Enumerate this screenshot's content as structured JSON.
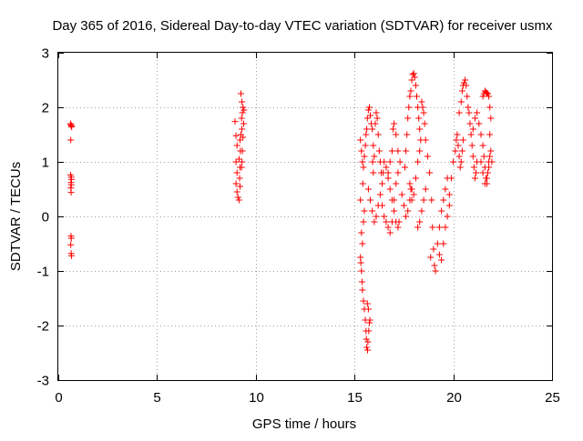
{
  "chart_data": {
    "type": "scatter",
    "title": "Day 365 of 2016, Sidereal Day-to-day VTEC variation (SDTVAR) for receiver usmx",
    "xlabel": "GPS time / hours",
    "ylabel": "SDTVAR / TECUs",
    "xlim": [
      0,
      25
    ],
    "ylim": [
      -3,
      3
    ],
    "xticks": [
      0,
      5,
      10,
      15,
      20,
      25
    ],
    "yticks": [
      -3,
      -2,
      -1,
      0,
      1,
      2,
      3
    ],
    "xtick_labels": [
      "0",
      "5",
      "10",
      "15",
      "20",
      "25"
    ],
    "ytick_labels": [
      "-3",
      "-2",
      "-1",
      "0",
      "1",
      "2",
      "3"
    ],
    "grid": true,
    "marker": "+",
    "color": "#ff0000",
    "series": [
      {
        "name": "SDTVAR",
        "points": [
          [
            0.62,
            1.7
          ],
          [
            0.64,
            1.68
          ],
          [
            0.66,
            1.66
          ],
          [
            0.68,
            1.64
          ],
          [
            0.63,
            1.4
          ],
          [
            0.62,
            0.76
          ],
          [
            0.65,
            0.72
          ],
          [
            0.67,
            0.68
          ],
          [
            0.64,
            0.62
          ],
          [
            0.66,
            0.58
          ],
          [
            0.63,
            0.52
          ],
          [
            0.65,
            0.44
          ],
          [
            0.64,
            -0.36
          ],
          [
            0.66,
            -0.4
          ],
          [
            0.63,
            -0.52
          ],
          [
            0.65,
            -0.68
          ],
          [
            0.67,
            -0.72
          ],
          [
            8.95,
            1.74
          ],
          [
            9.0,
            1.48
          ],
          [
            9.05,
            1.3
          ],
          [
            9.0,
            1.0
          ],
          [
            9.05,
            0.8
          ],
          [
            9.0,
            0.6
          ],
          [
            9.05,
            0.45
          ],
          [
            9.1,
            0.35
          ],
          [
            9.15,
            0.3
          ],
          [
            9.2,
            0.55
          ],
          [
            9.18,
            0.7
          ],
          [
            9.2,
            0.9
          ],
          [
            9.15,
            1.05
          ],
          [
            9.22,
            1.2
          ],
          [
            9.2,
            1.4
          ],
          [
            9.25,
            1.5
          ],
          [
            9.3,
            1.6
          ],
          [
            9.28,
            1.8
          ],
          [
            9.32,
            1.9
          ],
          [
            9.35,
            2.0
          ],
          [
            9.3,
            2.1
          ],
          [
            9.25,
            2.25
          ],
          [
            9.4,
            1.95
          ],
          [
            9.38,
            1.7
          ],
          [
            9.35,
            1.45
          ],
          [
            9.32,
            1.2
          ],
          [
            9.3,
            1.0
          ],
          [
            9.28,
            0.9
          ],
          [
            15.3,
            -0.75
          ],
          [
            15.32,
            -0.85
          ],
          [
            15.35,
            -1.0
          ],
          [
            15.38,
            -1.2
          ],
          [
            15.4,
            -1.35
          ],
          [
            15.45,
            -1.55
          ],
          [
            15.5,
            -1.7
          ],
          [
            15.55,
            -1.9
          ],
          [
            15.58,
            -2.1
          ],
          [
            15.6,
            -2.25
          ],
          [
            15.62,
            -2.4
          ],
          [
            15.66,
            -2.45
          ],
          [
            15.68,
            -2.3
          ],
          [
            15.72,
            -2.1
          ],
          [
            15.75,
            -1.95
          ],
          [
            15.78,
            -1.9
          ],
          [
            15.7,
            -1.7
          ],
          [
            15.65,
            -1.6
          ],
          [
            15.35,
            -0.3
          ],
          [
            15.4,
            -0.5
          ],
          [
            15.45,
            -0.1
          ],
          [
            15.5,
            0.1
          ],
          [
            15.3,
            0.3
          ],
          [
            15.42,
            0.6
          ],
          [
            15.3,
            1.4
          ],
          [
            15.35,
            1.2
          ],
          [
            15.4,
            1.0
          ],
          [
            15.45,
            0.9
          ],
          [
            15.5,
            1.1
          ],
          [
            15.55,
            1.3
          ],
          [
            15.58,
            1.5
          ],
          [
            15.62,
            1.6
          ],
          [
            15.65,
            1.8
          ],
          [
            15.7,
            1.95
          ],
          [
            15.75,
            2.0
          ],
          [
            15.8,
            1.85
          ],
          [
            15.85,
            1.7
          ],
          [
            15.9,
            1.6
          ],
          [
            15.95,
            1.3
          ],
          [
            16.0,
            1.1
          ],
          [
            15.92,
            1.0
          ],
          [
            15.95,
            0.8
          ],
          [
            16.05,
            1.7
          ],
          [
            16.1,
            1.9
          ],
          [
            16.15,
            1.8
          ],
          [
            16.2,
            1.5
          ],
          [
            16.25,
            1.2
          ],
          [
            16.3,
            1.0
          ],
          [
            16.35,
            0.8
          ],
          [
            16.4,
            0.6
          ],
          [
            16.45,
            0.8
          ],
          [
            16.5,
            1.0
          ],
          [
            16.6,
            0.9
          ],
          [
            16.7,
            0.7
          ],
          [
            16.8,
            0.5
          ],
          [
            16.9,
            0.3
          ],
          [
            17.0,
            0.1
          ],
          [
            17.1,
            -0.1
          ],
          [
            17.2,
            -0.2
          ],
          [
            17.25,
            -0.1
          ],
          [
            15.7,
            0.5
          ],
          [
            15.8,
            0.3
          ],
          [
            15.9,
            0.1
          ],
          [
            16.0,
            -0.1
          ],
          [
            16.1,
            0.0
          ],
          [
            16.2,
            0.2
          ],
          [
            16.3,
            0.4
          ],
          [
            16.4,
            0.2
          ],
          [
            16.5,
            0.0
          ],
          [
            16.6,
            -0.1
          ],
          [
            16.7,
            -0.2
          ],
          [
            16.8,
            -0.3
          ],
          [
            16.9,
            -0.1
          ],
          [
            17.0,
            0.3
          ],
          [
            17.1,
            0.6
          ],
          [
            17.2,
            0.8
          ],
          [
            17.3,
            1.0
          ],
          [
            17.2,
            1.2
          ],
          [
            17.1,
            1.5
          ],
          [
            17.0,
            1.7
          ],
          [
            16.95,
            1.6
          ],
          [
            16.9,
            1.2
          ],
          [
            16.8,
            1.0
          ],
          [
            16.7,
            0.8
          ],
          [
            17.4,
            0.4
          ],
          [
            17.5,
            0.2
          ],
          [
            17.6,
            0.0
          ],
          [
            17.7,
            0.1
          ],
          [
            17.8,
            0.3
          ],
          [
            17.9,
            0.5
          ],
          [
            17.55,
            0.9
          ],
          [
            17.6,
            1.2
          ],
          [
            17.65,
            1.5
          ],
          [
            17.7,
            1.8
          ],
          [
            17.75,
            2.0
          ],
          [
            17.8,
            2.2
          ],
          [
            17.85,
            2.3
          ],
          [
            17.9,
            2.5
          ],
          [
            17.95,
            2.6
          ],
          [
            18.0,
            2.62
          ],
          [
            18.05,
            2.55
          ],
          [
            18.1,
            2.4
          ],
          [
            18.15,
            2.2
          ],
          [
            18.2,
            2.0
          ],
          [
            18.25,
            1.8
          ],
          [
            18.3,
            1.6
          ],
          [
            18.35,
            1.4
          ],
          [
            18.3,
            1.2
          ],
          [
            18.2,
            1.0
          ],
          [
            18.1,
            0.7
          ],
          [
            18.0,
            0.4
          ],
          [
            17.9,
            0.3
          ],
          [
            17.85,
            0.5
          ],
          [
            17.8,
            0.6
          ],
          [
            18.4,
            2.1
          ],
          [
            18.45,
            2.0
          ],
          [
            18.5,
            1.9
          ],
          [
            18.55,
            1.7
          ],
          [
            18.6,
            1.4
          ],
          [
            18.7,
            1.1
          ],
          [
            18.8,
            0.8
          ],
          [
            18.9,
            0.3
          ],
          [
            18.95,
            -0.2
          ],
          [
            19.0,
            -0.6
          ],
          [
            19.05,
            -0.9
          ],
          [
            19.1,
            -1.0
          ],
          [
            18.85,
            -0.75
          ],
          [
            18.2,
            -0.2
          ],
          [
            18.3,
            -0.1
          ],
          [
            18.4,
            0.1
          ],
          [
            18.5,
            0.3
          ],
          [
            18.6,
            0.5
          ],
          [
            19.2,
            -0.5
          ],
          [
            19.3,
            -0.2
          ],
          [
            19.4,
            0.1
          ],
          [
            19.5,
            0.3
          ],
          [
            19.6,
            0.5
          ],
          [
            19.7,
            0.7
          ],
          [
            19.3,
            -0.7
          ],
          [
            19.4,
            -0.8
          ],
          [
            19.5,
            -0.5
          ],
          [
            19.6,
            -0.2
          ],
          [
            19.7,
            0.0
          ],
          [
            19.8,
            0.2
          ],
          [
            19.8,
            0.4
          ],
          [
            19.9,
            0.7
          ],
          [
            20.0,
            1.0
          ],
          [
            20.1,
            1.2
          ],
          [
            20.15,
            1.4
          ],
          [
            20.2,
            1.5
          ],
          [
            20.25,
            1.3
          ],
          [
            20.3,
            1.1
          ],
          [
            20.35,
            0.9
          ],
          [
            20.4,
            1.0
          ],
          [
            20.45,
            1.2
          ],
          [
            20.5,
            1.4
          ],
          [
            20.3,
            1.9
          ],
          [
            20.4,
            2.1
          ],
          [
            20.45,
            2.3
          ],
          [
            20.5,
            2.4
          ],
          [
            20.55,
            2.45
          ],
          [
            20.6,
            2.5
          ],
          [
            20.65,
            2.4
          ],
          [
            20.7,
            2.2
          ],
          [
            20.75,
            2.0
          ],
          [
            20.8,
            1.9
          ],
          [
            20.85,
            1.7
          ],
          [
            20.9,
            1.5
          ],
          [
            20.95,
            1.3
          ],
          [
            21.0,
            1.1
          ],
          [
            21.05,
            0.9
          ],
          [
            21.1,
            0.7
          ],
          [
            21.15,
            0.8
          ],
          [
            21.2,
            1.0
          ],
          [
            21.0,
            1.6
          ],
          [
            21.1,
            1.8
          ],
          [
            21.2,
            1.9
          ],
          [
            21.3,
            1.7
          ],
          [
            21.4,
            1.5
          ],
          [
            21.5,
            1.3
          ],
          [
            21.55,
            1.1
          ],
          [
            21.6,
            0.9
          ],
          [
            21.65,
            0.7
          ],
          [
            21.7,
            0.6
          ],
          [
            21.75,
            0.8
          ],
          [
            21.8,
            1.0
          ],
          [
            21.5,
            2.2
          ],
          [
            21.55,
            2.25
          ],
          [
            21.6,
            2.3
          ],
          [
            21.65,
            2.28
          ],
          [
            21.7,
            2.26
          ],
          [
            21.75,
            2.25
          ],
          [
            21.8,
            2.2
          ],
          [
            21.85,
            2.0
          ],
          [
            21.9,
            1.8
          ],
          [
            21.85,
            1.5
          ],
          [
            21.9,
            1.2
          ],
          [
            21.95,
            1.0
          ],
          [
            21.4,
            1.0
          ],
          [
            21.5,
            0.8
          ],
          [
            21.6,
            0.6
          ],
          [
            21.7,
            0.7
          ],
          [
            21.8,
            0.9
          ],
          [
            21.85,
            1.1
          ]
        ]
      }
    ]
  }
}
